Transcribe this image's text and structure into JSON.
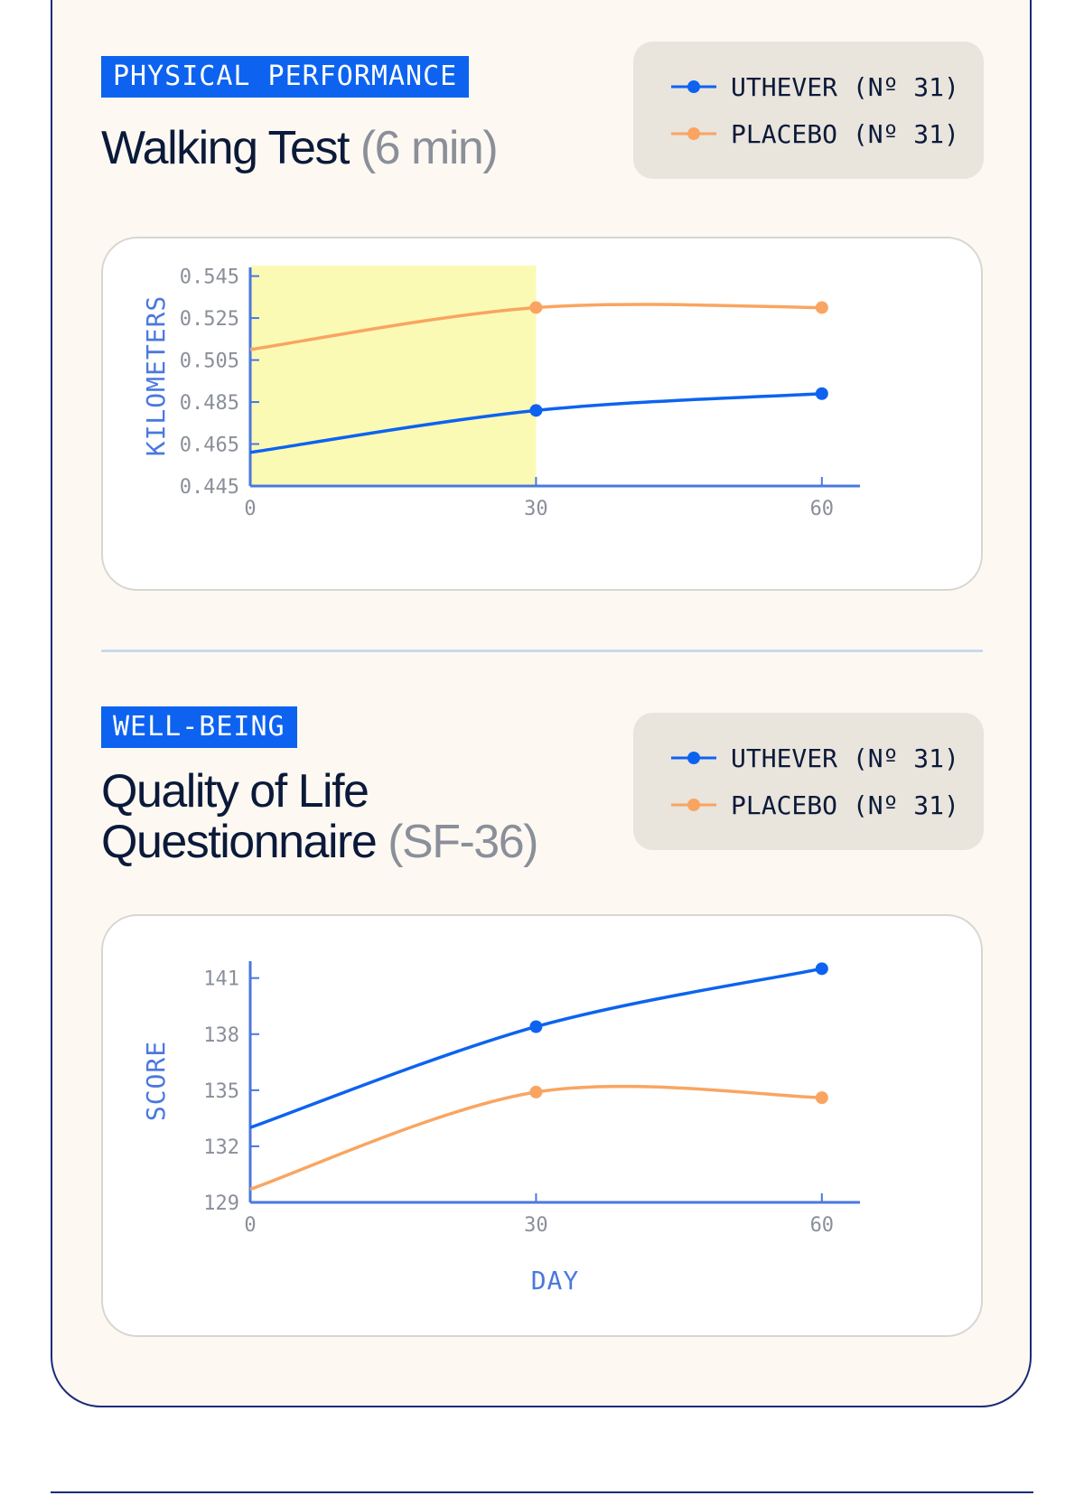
{
  "sections": [
    {
      "tag": "PHYSICAL PERFORMANCE",
      "title": "Walking Test",
      "subtitle": "(6 min)",
      "legend": [
        {
          "label": "UTHEVER (Nº 31)",
          "color": "#0d63f0"
        },
        {
          "label": "PLACEBO (Nº 31)",
          "color": "#f9a561"
        }
      ]
    },
    {
      "tag": "WELL-BEING",
      "title_line1": "Quality of Life",
      "title_line2": "Questionnaire",
      "subtitle": "(SF-36)",
      "legend": [
        {
          "label": "UTHEVER (Nº 31)",
          "color": "#0d63f0"
        },
        {
          "label": "PLACEBO (Nº 31)",
          "color": "#f9a561"
        }
      ]
    }
  ],
  "chart_data": [
    {
      "type": "line",
      "ylabel": "KILOMETERS",
      "xlabel": "",
      "x": [
        0,
        30,
        60
      ],
      "xticks": [
        "0",
        "30",
        "60"
      ],
      "yticks": [
        "0.445",
        "0.465",
        "0.485",
        "0.505",
        "0.525",
        "0.545"
      ],
      "ylim": [
        0.445,
        0.55
      ],
      "xlim": [
        0,
        64
      ],
      "highlight_range": [
        0,
        30
      ],
      "highlight_color": "#fbfab5",
      "series": [
        {
          "name": "UTHEVER",
          "values": [
            0.461,
            0.481,
            0.489
          ],
          "color": "#0d63f0"
        },
        {
          "name": "PLACEBO",
          "values": [
            0.51,
            0.53,
            0.53
          ],
          "color": "#f9a561"
        }
      ]
    },
    {
      "type": "line",
      "ylabel": "SCORE",
      "xlabel": "DAY",
      "x": [
        0,
        30,
        60
      ],
      "xticks": [
        "0",
        "30",
        "60"
      ],
      "yticks": [
        "129",
        "132",
        "135",
        "138",
        "141"
      ],
      "ylim": [
        129,
        142
      ],
      "xlim": [
        0,
        64
      ],
      "series": [
        {
          "name": "UTHEVER",
          "values": [
            133.0,
            138.4,
            141.5
          ],
          "color": "#0d63f0"
        },
        {
          "name": "PLACEBO",
          "values": [
            129.7,
            134.9,
            134.6
          ],
          "color": "#f9a561"
        }
      ]
    }
  ]
}
